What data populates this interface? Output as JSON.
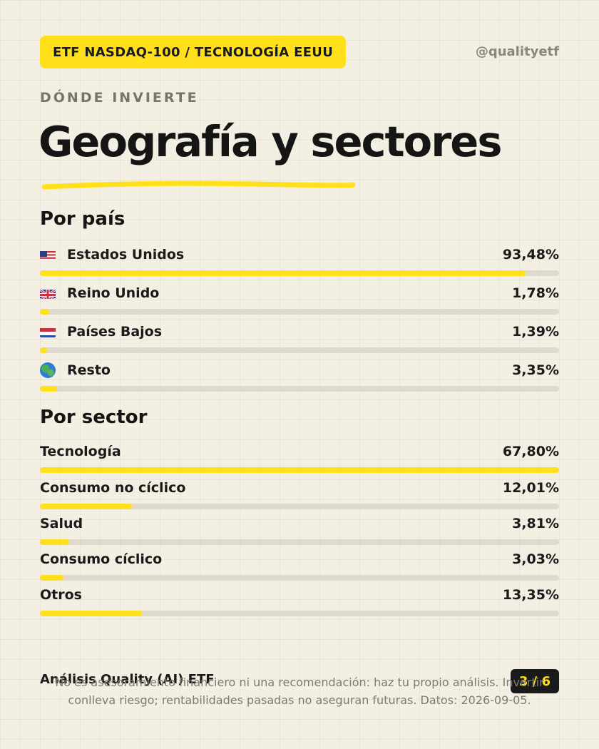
{
  "header": {
    "tag": "ETF NASDAQ-100 / TECNOLOGÍA EEUU",
    "handle": "@qualityetf"
  },
  "hero": {
    "kicker": "DÓNDE INVIERTE",
    "title": "Geografía y sectores"
  },
  "countries": {
    "title": "Por país",
    "items": [
      {
        "label": "Estados Unidos",
        "value": "93,48%",
        "pct": 93.48,
        "icon": "flag-us-icon"
      },
      {
        "label": "Reino Unido",
        "value": "1,78%",
        "pct": 1.78,
        "icon": "flag-uk-icon"
      },
      {
        "label": "Países Bajos",
        "value": "1,39%",
        "pct": 1.39,
        "icon": "flag-nl-icon"
      },
      {
        "label": "Resto",
        "value": "3,35%",
        "pct": 3.35,
        "icon": "globe-icon"
      }
    ]
  },
  "sectors": {
    "title": "Por sector",
    "items": [
      {
        "label": "Tecnología",
        "value": "67,80%",
        "pct": 67.8,
        "fill_fraction": 1.0
      },
      {
        "label": "Consumo no cíclico",
        "value": "12,01%",
        "pct": 12.01,
        "fill_fraction": 0.177
      },
      {
        "label": "Salud",
        "value": "3,81%",
        "pct": 3.81,
        "fill_fraction": 0.056
      },
      {
        "label": "Consumo cíclico",
        "value": "3,03%",
        "pct": 3.03,
        "fill_fraction": 0.045
      },
      {
        "label": "Otros",
        "value": "13,35%",
        "pct": 13.35,
        "fill_fraction": 0.197
      }
    ]
  },
  "footer": {
    "brand": "Análisis Quality (AI) ETF",
    "counter": "3 / 6",
    "disclaimer": "No es asesoramiento financiero ni una recomendación: haz tu propio análisis. Invertir conlleva riesgo; rentabilidades pasadas no aseguran futuras. Datos: 2026-09-05."
  },
  "colors": {
    "accent": "#ffe01a",
    "background": "#f3efe2",
    "track": "#dfdacd",
    "text": "#1a1a1a"
  }
}
